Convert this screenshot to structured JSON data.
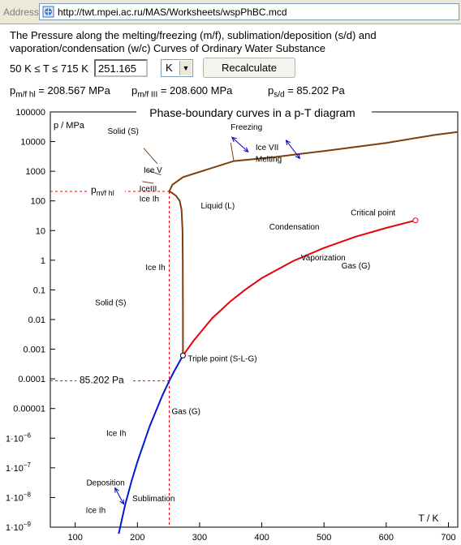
{
  "browser": {
    "address_label": "Address",
    "url": "http://twt.mpei.ac.ru/MAS/Worksheets/wspPhBC.mcd"
  },
  "header": {
    "title_line1": "The Pressure along the melting/freezing (m/f), sublimation/deposition (s/d) and",
    "title_line2": "vaporation/condensation (w/c) Curves of Ordinary Water Substance"
  },
  "controls": {
    "range_text": "50 K ≤ T ≤ 715 K",
    "temperature_value": "251.165",
    "unit_selected": "K",
    "recalculate_label": "Recalculate"
  },
  "results": {
    "pmf_hl_label": "p",
    "pmf_hl_sub": "m/f hl",
    "pmf_hl_value": " = 208.567 MPa",
    "pmf_III_label": "p",
    "pmf_III_sub": "m/f III",
    "pmf_III_value": " = 208.600 MPa",
    "psd_label": "p",
    "psd_sub": "s/d",
    "psd_value": " = 85.202 Pa"
  },
  "chart_data": {
    "type": "line",
    "title": "Phase-boundary curves in a p-T diagram",
    "xlabel": "T / K",
    "ylabel": "p / MPa",
    "x_scale": "linear",
    "y_scale": "log",
    "xlim": [
      60,
      715
    ],
    "ylim": [
      1e-09,
      100000
    ],
    "x_ticks": [
      100,
      200,
      300,
      400,
      500,
      600,
      700
    ],
    "y_ticks": [
      {
        "v": 100000,
        "label": "100000"
      },
      {
        "v": 10000,
        "label": "10000"
      },
      {
        "v": 1000,
        "label": "1000"
      },
      {
        "v": 100,
        "label": "100"
      },
      {
        "v": 10,
        "label": "10"
      },
      {
        "v": 1,
        "label": "1"
      },
      {
        "v": 0.1,
        "label": "0.1"
      },
      {
        "v": 0.01,
        "label": "0.01"
      },
      {
        "v": 0.001,
        "label": "0.001"
      },
      {
        "v": 0.0001,
        "label": "0.0001"
      },
      {
        "v": 1e-05,
        "label": "0.00001"
      },
      {
        "v": 1e-06,
        "label": "1·10",
        "exp": "−6"
      },
      {
        "v": 1e-07,
        "label": "1·10",
        "exp": "−7"
      },
      {
        "v": 1e-08,
        "label": "1·10",
        "exp": "−8"
      },
      {
        "v": 1e-09,
        "label": "1·10",
        "exp": "−9"
      }
    ],
    "colors": {
      "melting": "#7b3f0e",
      "vaporization": "#e8000c",
      "sublimation": "#0018d8",
      "marker": "#e8000c",
      "arrow": "#0000c0"
    },
    "series": [
      {
        "key": "melting",
        "points": [
          [
            273.16,
            0.000612
          ],
          [
            273.2,
            0.01
          ],
          [
            273.0,
            1
          ],
          [
            272.5,
            10
          ],
          [
            271,
            50
          ],
          [
            268,
            100
          ],
          [
            262,
            150
          ],
          [
            255,
            190
          ],
          [
            251.165,
            208.567
          ],
          [
            256.2,
            350
          ],
          [
            273.3,
            632
          ],
          [
            355,
            2200
          ],
          [
            420,
            3000
          ],
          [
            500,
            4800
          ],
          [
            600,
            9000
          ],
          [
            680,
            17000
          ],
          [
            715,
            21000
          ]
        ]
      },
      {
        "key": "vaporization",
        "points": [
          [
            273.16,
            0.000612
          ],
          [
            290,
            0.0019
          ],
          [
            320,
            0.011
          ],
          [
            350,
            0.042
          ],
          [
            373.15,
            0.101
          ],
          [
            400,
            0.25
          ],
          [
            450,
            0.93
          ],
          [
            500,
            2.6
          ],
          [
            550,
            6.1
          ],
          [
            600,
            12.3
          ],
          [
            647.1,
            22.06
          ]
        ]
      },
      {
        "key": "sublimation",
        "points": [
          [
            273.16,
            0.000612
          ],
          [
            260,
            0.000196
          ],
          [
            251.165,
            8.52e-05
          ],
          [
            240,
            2.73e-05
          ],
          [
            220,
            2.6e-06
          ],
          [
            200,
            1.6e-07
          ],
          [
            190,
            3.2e-08
          ],
          [
            180,
            5.4e-09
          ],
          [
            170,
            6e-10
          ]
        ]
      }
    ],
    "aux_lines": [
      [
        [
          210,
          6000
        ],
        [
          232,
          1800
        ]
      ],
      [
        [
          215,
          1100
        ],
        [
          238,
          750
        ]
      ],
      [
        [
          208,
          450
        ],
        [
          226,
          390
        ]
      ],
      [
        [
          350,
          9000
        ],
        [
          355,
          2200
        ]
      ]
    ],
    "current_state": {
      "T": 251.165,
      "p_mf": 208.567,
      "p_sd": 8.52e-05,
      "p_mf_label_main": "p",
      "p_mf_label_sub": "m/f hl",
      "p_sd_label": "85.202 Pa"
    },
    "triple_point": {
      "T": 273.16,
      "p": 0.000612,
      "label": "Triple point (S-L-G)"
    },
    "critical_point": {
      "T": 647.1,
      "p": 22.06,
      "label": "Critical point"
    },
    "annotations": [
      {
        "text": "Solid (S)",
        "T": 152,
        "p": 18000
      },
      {
        "text": "Ice VII",
        "T": 390,
        "p": 5200
      },
      {
        "text": "Freezing",
        "T": 350,
        "p": 25000
      },
      {
        "text": "Melting",
        "T": 390,
        "p": 2100
      },
      {
        "text": "Ice V",
        "T": 210,
        "p": 900
      },
      {
        "text": "IceIII",
        "T": 203,
        "p": 210
      },
      {
        "text": "Ice Ih",
        "T": 203,
        "p": 95
      },
      {
        "text": "Liquid (L)",
        "T": 302,
        "p": 55
      },
      {
        "text": "Critical point",
        "T": 543,
        "p": 33
      },
      {
        "text": "Condensation",
        "T": 412,
        "p": 11
      },
      {
        "text": "Vaporization",
        "T": 463,
        "p": 1.0
      },
      {
        "text": "Gas (G)",
        "T": 528,
        "p": 0.52
      },
      {
        "text": "Ice Ih",
        "T": 213,
        "p": 0.46
      },
      {
        "text": "Solid (S)",
        "T": 132,
        "p": 0.03
      },
      {
        "text": "Gas (G)",
        "T": 255,
        "p": 6.5e-06
      },
      {
        "text": "Ice Ih",
        "T": 150,
        "p": 1.2e-06
      },
      {
        "text": "Deposition",
        "T": 118,
        "p": 2.6e-08
      },
      {
        "text": "Sublimation",
        "T": 192,
        "p": 7.5e-09
      },
      {
        "text": "Ice Ih",
        "T": 117,
        "p": 3e-09
      }
    ],
    "arrows": [
      {
        "from": [
          352,
          14000
        ],
        "to": [
          378,
          4500
        ]
      },
      {
        "from": [
          439,
          11000
        ],
        "to": [
          461,
          2700
        ]
      },
      {
        "from": [
          164,
          2.1e-08
        ],
        "to": [
          178,
          6e-09
        ]
      }
    ],
    "grid": false
  }
}
